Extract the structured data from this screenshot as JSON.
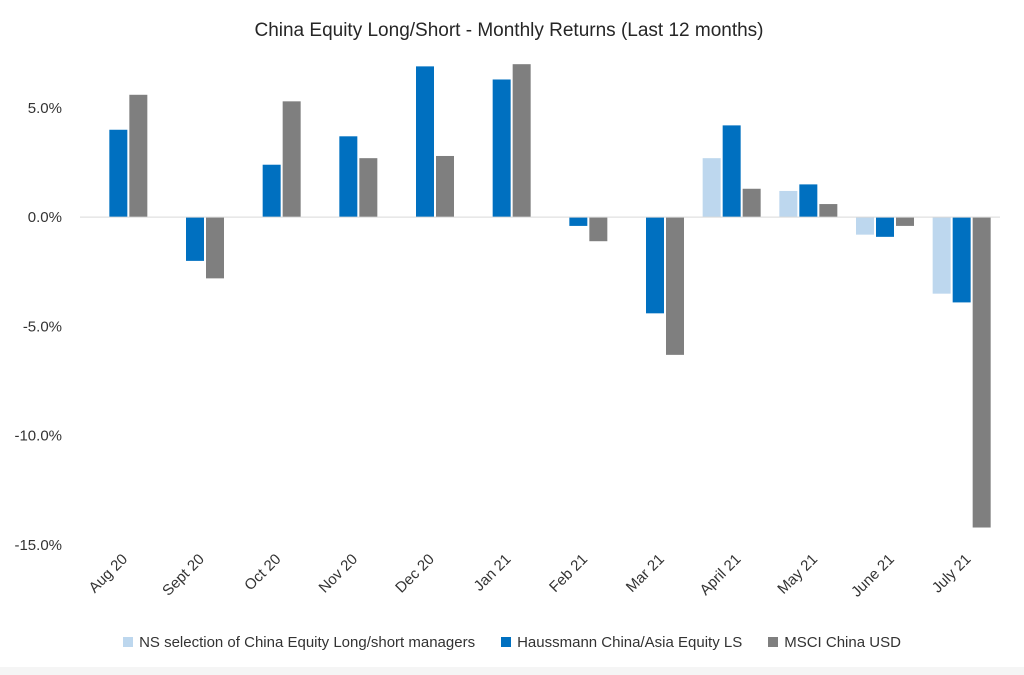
{
  "chart_data": {
    "type": "bar",
    "title": "China Equity Long/Short - Monthly Returns (Last 12 months)",
    "xlabel": "",
    "ylabel": "",
    "categories": [
      "Aug 20",
      "Sept 20",
      "Oct 20",
      "Nov 20",
      "Dec 20",
      "Jan 21",
      "Feb 21",
      "Mar 21",
      "April 21",
      "May 21",
      "June 21",
      "July 21"
    ],
    "series": [
      {
        "name": "NS selection of China Equity Long/short managers",
        "color": "#bdd7ee",
        "values": [
          null,
          null,
          null,
          null,
          null,
          null,
          null,
          null,
          2.7,
          1.2,
          -0.8,
          -3.5
        ]
      },
      {
        "name": "Haussmann China/Asia Equity LS",
        "color": "#0070c0",
        "values": [
          4.0,
          -2.0,
          2.4,
          3.7,
          6.9,
          6.3,
          -0.4,
          -4.4,
          4.2,
          1.5,
          -0.9,
          -3.9
        ]
      },
      {
        "name": "MSCI China USD",
        "color": "#7f7f7f",
        "values": [
          5.6,
          -2.8,
          5.3,
          2.7,
          2.8,
          7.0,
          -1.1,
          -6.3,
          1.3,
          0.6,
          -0.4,
          -14.2
        ]
      }
    ],
    "yticks": [
      5,
      0,
      -5,
      -10,
      -15
    ],
    "ytick_labels": [
      "5.0%",
      "0.0%",
      "-5.0%",
      "-10.0%",
      "-15.0%"
    ],
    "ylim": [
      -15,
      7.1
    ],
    "grid": false,
    "legend_position": "bottom"
  }
}
